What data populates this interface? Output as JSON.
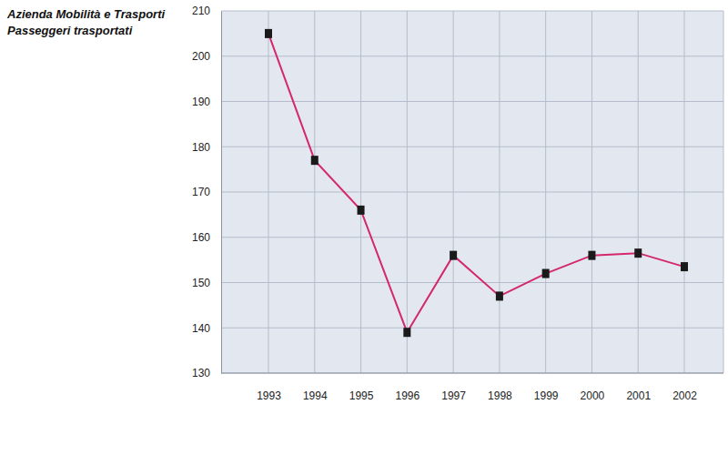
{
  "chart_data": {
    "type": "line",
    "title": "Azienda Mobilità e Trasporti",
    "subtitle": "Passeggeri trasportati",
    "categories": [
      "1993",
      "1994",
      "1995",
      "1996",
      "1997",
      "1998",
      "1999",
      "2000",
      "2001",
      "2002"
    ],
    "values": [
      205,
      177,
      166,
      139,
      156,
      147,
      152,
      156,
      156.5,
      153.5
    ],
    "color": "#d4286e",
    "marker": "square",
    "ylim": [
      130,
      210
    ],
    "yticks": [
      130,
      140,
      150,
      160,
      170,
      180,
      190,
      200,
      210
    ],
    "grid": true
  }
}
